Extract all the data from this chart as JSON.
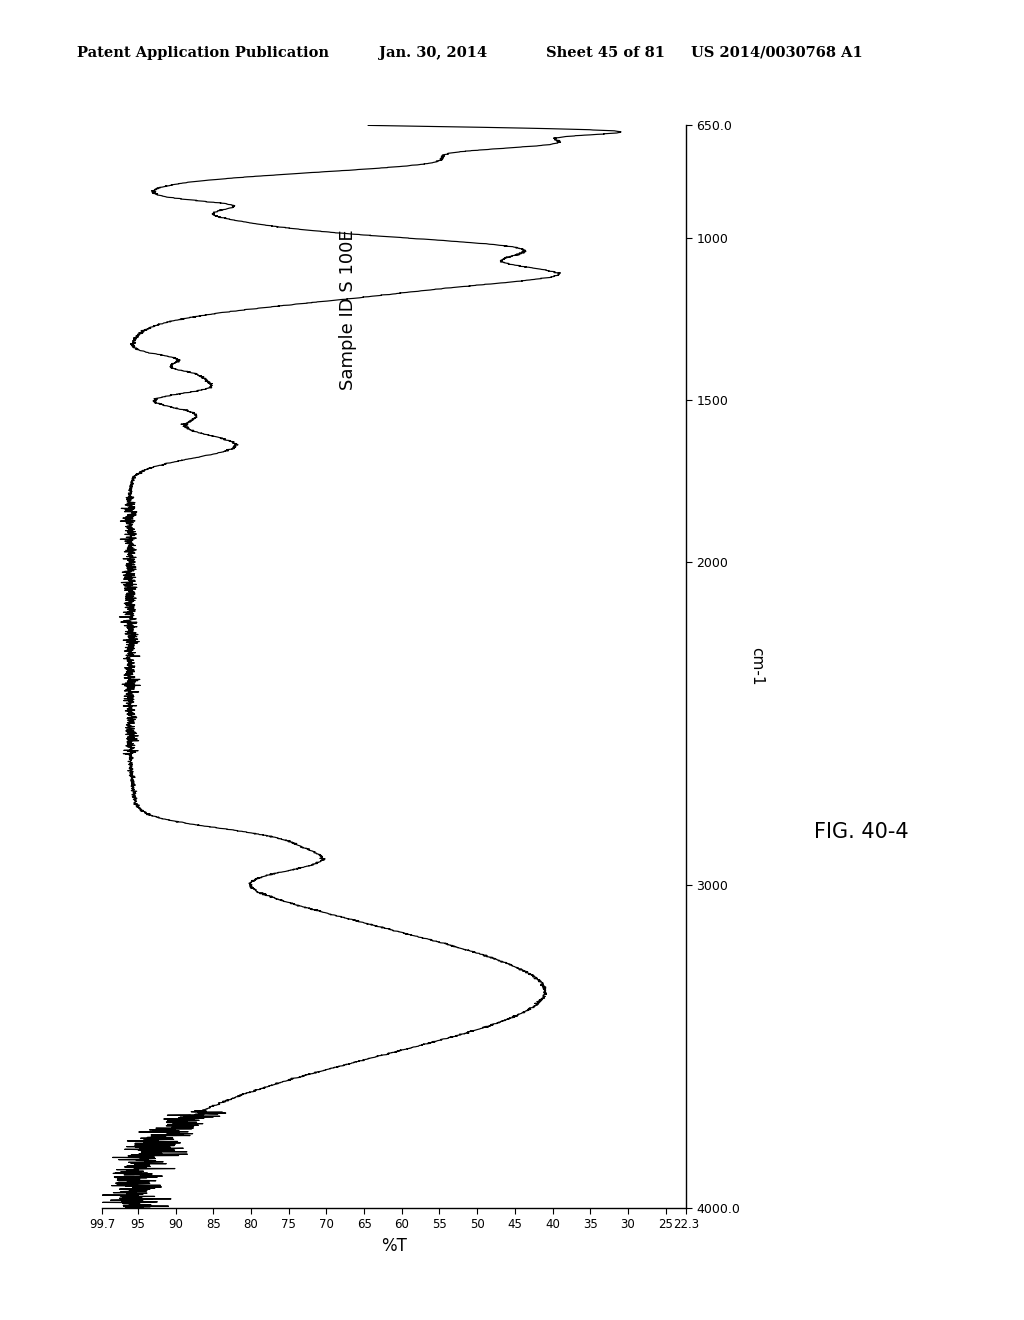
{
  "title_header": "Patent Application Publication",
  "date": "Jan. 30, 2014",
  "sheet": "Sheet 45 of 81",
  "patent": "US 2014/0030768 A1",
  "sample_label": "Sample ID S 100E",
  "fig_label": "FIG. 40-4",
  "xlabel_wavenumber": "cm-1",
  "ylabel_transmittance": "%T",
  "wavenumber_min": 650.0,
  "wavenumber_max": 4000.0,
  "transmittance_min": 22.3,
  "transmittance_max": 99.7,
  "wavenumber_ticks": [
    650.0,
    1000,
    1500,
    2000,
    3000,
    4000.0
  ],
  "wavenumber_tick_labels": [
    "650.0",
    "1000",
    "1500",
    "2000",
    "3000",
    "4000.0"
  ],
  "transmittance_ticks": [
    99.7,
    95,
    90,
    85,
    80,
    75,
    70,
    65,
    60,
    55,
    50,
    45,
    40,
    35,
    30,
    25,
    22.3
  ],
  "transmittance_tick_labels": [
    "99.7",
    "95",
    "90",
    "85",
    "80",
    "75",
    "70",
    "65",
    "60",
    "55",
    "50",
    "45",
    "40",
    "35",
    "30",
    "25",
    "22.3"
  ],
  "background_color": "#ffffff",
  "line_color": "#000000",
  "header_color": "#000000"
}
